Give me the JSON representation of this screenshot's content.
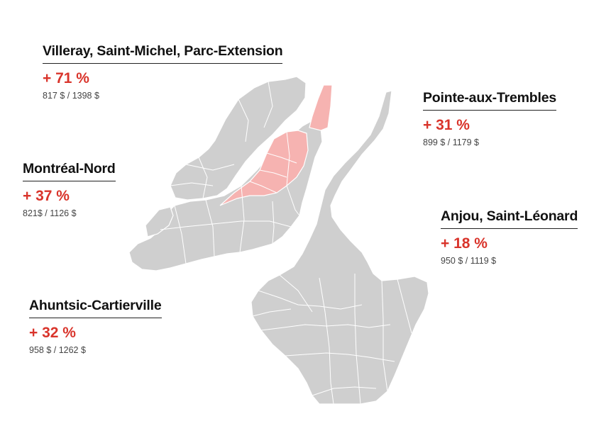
{
  "colors": {
    "background": "#ffffff",
    "map_fill": "#cfcfcf",
    "map_border": "#ffffff",
    "highlight_fill": "#f6b3b1",
    "text": "#111111",
    "accent": "#d9342b",
    "muted_text": "#444444"
  },
  "districts": [
    {
      "name": "Villeray, Saint-Michel, Parc-Extension",
      "change": "+ 71 %",
      "rents": "817 $ / 1398 $",
      "highlighted": true
    },
    {
      "name": "Pointe-aux-Trembles",
      "change": "+ 31 %",
      "rents": "899 $ / 1179 $",
      "highlighted": false
    },
    {
      "name": "Montréal-Nord",
      "change": "+ 37 %",
      "rents": "821$ / 1126 $",
      "highlighted": false
    },
    {
      "name": "Anjou, Saint-Léonard",
      "change": "+ 18 %",
      "rents": "950 $ / 1119 $",
      "highlighted": false
    },
    {
      "name": "Ahuntsic-Cartierville",
      "change": "+ 32 %",
      "rents": "958 $ / 1262 $",
      "highlighted": false
    }
  ]
}
